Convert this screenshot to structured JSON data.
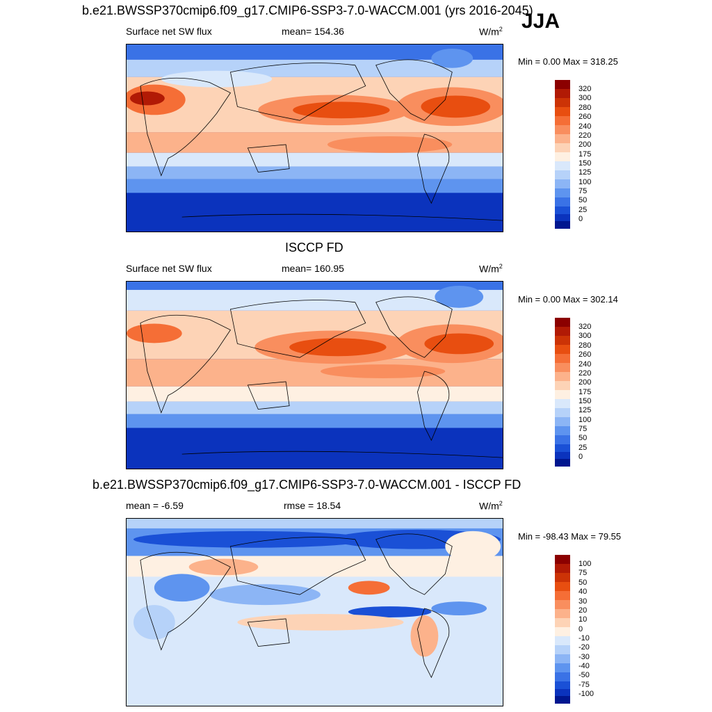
{
  "season": "JJA",
  "panels": [
    {
      "title": "b.e21.BWSSP370cmip6.f09_g17.CMIP6-SSP3-7.0-WACCM.001 (yrs 2016-2045)",
      "variable": "Surface net SW flux",
      "stat": "mean= 154.36",
      "units_base": "W/m",
      "units_exp": "2",
      "minmax": "Min =   0.00 Max = 318.25",
      "levels": [
        "320",
        "300",
        "280",
        "260",
        "240",
        "220",
        "200",
        "175",
        "150",
        "125",
        "100",
        "75",
        "50",
        "25",
        "0"
      ],
      "colors": [
        "#8b0000",
        "#b11a05",
        "#cc3306",
        "#e84e10",
        "#f56e36",
        "#f98e5e",
        "#fcb28b",
        "#fdd3b6",
        "#fef0e2",
        "#d9e8fb",
        "#b6d2f9",
        "#8cb5f5",
        "#5e94ef",
        "#3a72e6",
        "#1a50d6",
        "#0b33bd",
        "#00168f"
      ]
    },
    {
      "title": "ISCCP FD",
      "variable": "Surface net SW flux",
      "stat": "mean= 160.95",
      "units_base": "W/m",
      "units_exp": "2",
      "minmax": "Min =   0.00 Max = 302.14",
      "levels": [
        "320",
        "300",
        "280",
        "260",
        "240",
        "220",
        "200",
        "175",
        "150",
        "125",
        "100",
        "75",
        "50",
        "25",
        "0"
      ],
      "colors": [
        "#8b0000",
        "#b11a05",
        "#cc3306",
        "#e84e10",
        "#f56e36",
        "#f98e5e",
        "#fcb28b",
        "#fdd3b6",
        "#fef0e2",
        "#d9e8fb",
        "#b6d2f9",
        "#8cb5f5",
        "#5e94ef",
        "#3a72e6",
        "#1a50d6",
        "#0b33bd",
        "#00168f"
      ]
    },
    {
      "title": "b.e21.BWSSP370cmip6.f09_g17.CMIP6-SSP3-7.0-WACCM.001 - ISCCP FD",
      "variable": "mean =  -6.59",
      "stat": "rmse =  18.54",
      "units_base": "W/m",
      "units_exp": "2",
      "minmax": "Min = -98.43 Max =  79.55",
      "levels": [
        "100",
        "75",
        "50",
        "40",
        "30",
        "20",
        "10",
        "0",
        "-10",
        "-20",
        "-30",
        "-40",
        "-50",
        "-75",
        "-100"
      ],
      "colors": [
        "#8b0000",
        "#b11a05",
        "#cc3306",
        "#e84e10",
        "#f56e36",
        "#f98e5e",
        "#fcb28b",
        "#fdd3b6",
        "#fef0e2",
        "#d9e8fb",
        "#b6d2f9",
        "#8cb5f5",
        "#5e94ef",
        "#3a72e6",
        "#1a50d6",
        "#0b33bd",
        "#00168f"
      ]
    }
  ]
}
